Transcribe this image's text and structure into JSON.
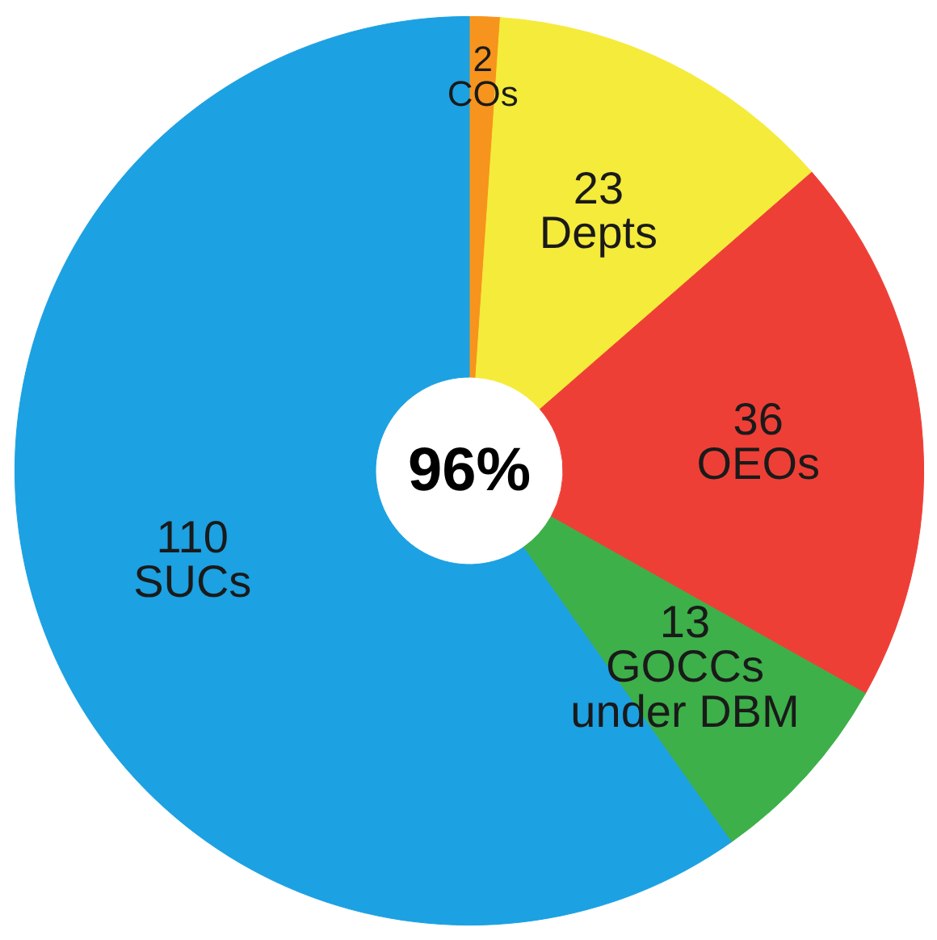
{
  "chart_data": {
    "type": "donut",
    "categories": [
      "COs",
      "Depts",
      "OEOs",
      "GOCCs under DBM",
      "SUCs"
    ],
    "values": [
      2,
      23,
      36,
      13,
      110
    ],
    "colors": [
      "#f7941d",
      "#f5eb3b",
      "#ee3f36",
      "#3db049",
      "#1ca1e2"
    ],
    "data_labels": true,
    "annotations": [
      "96%"
    ]
  }
}
